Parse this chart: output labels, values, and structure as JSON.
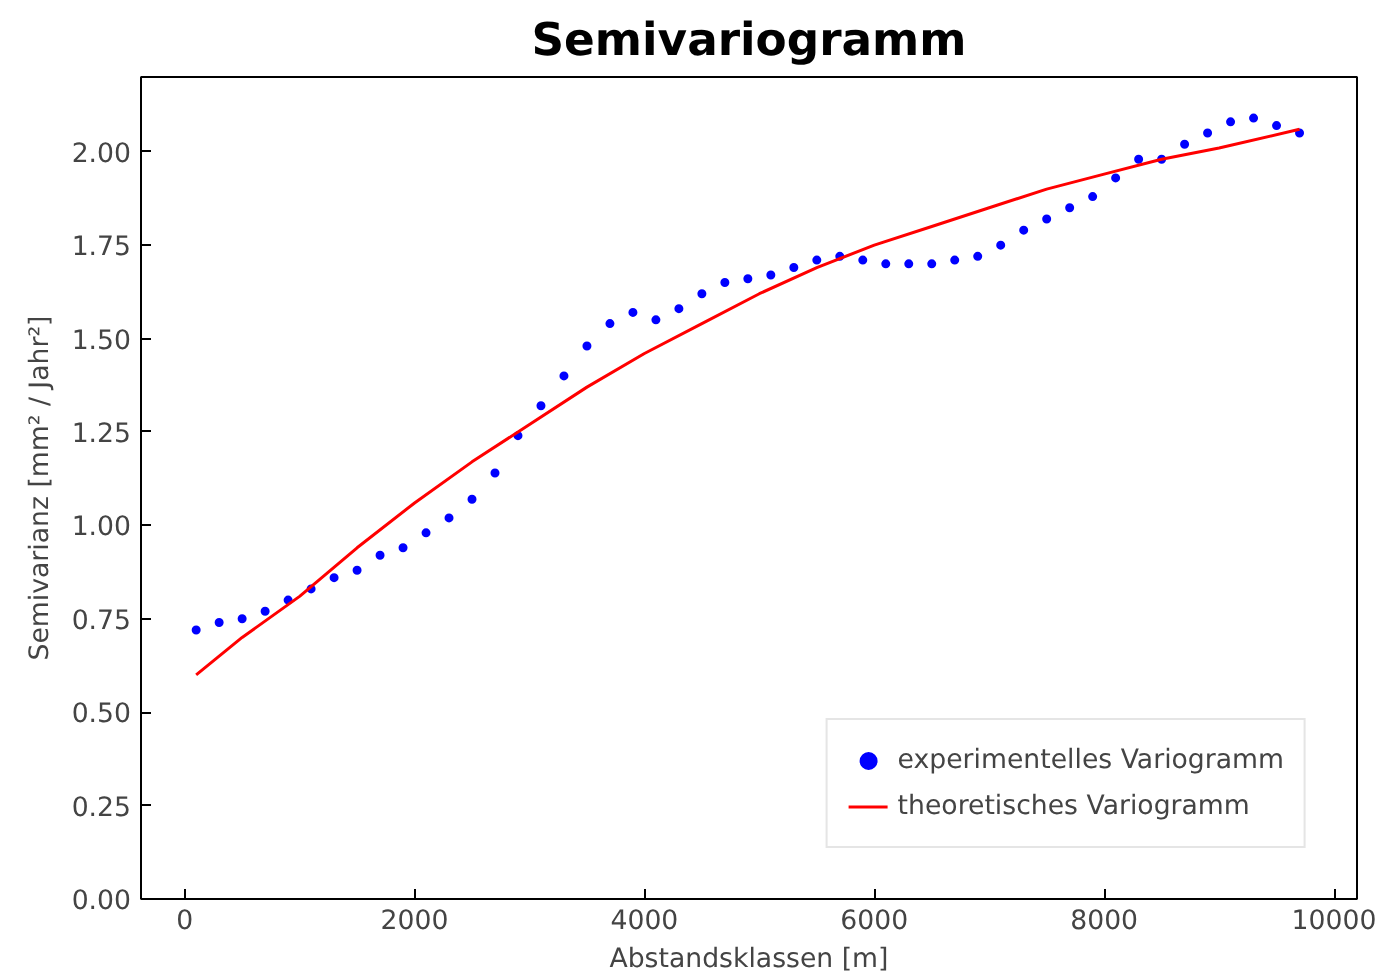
{
  "chart_data": {
    "type": "scatter",
    "title": "Semivariogramm",
    "xlabel": "Abstandsklassen [m]",
    "ylabel": "Semivarianz [mm² / Jahr²]",
    "xlim": [
      -380,
      10200
    ],
    "ylim": [
      0,
      2.2
    ],
    "xticks": [
      0,
      2000,
      4000,
      6000,
      8000,
      10000
    ],
    "yticks": [
      {
        "value": 0,
        "label": "0.00"
      },
      {
        "value": 0.25,
        "label": "0.25"
      },
      {
        "value": 0.5,
        "label": "0.50"
      },
      {
        "value": 0.75,
        "label": "0.75"
      },
      {
        "value": 1,
        "label": "1.00"
      },
      {
        "value": 1.25,
        "label": "1.25"
      },
      {
        "value": 1.5,
        "label": "1.50"
      },
      {
        "value": 1.75,
        "label": "1.75"
      },
      {
        "value": 2,
        "label": "2.00"
      }
    ],
    "grid": false,
    "legend": "bottom right",
    "series": [
      {
        "name": "experimentelles Variogramm",
        "marker": "circle",
        "color": "#0000ff",
        "x": [
          100,
          300,
          500,
          700,
          900,
          1100,
          1300,
          1500,
          1700,
          1900,
          2100,
          2300,
          2500,
          2700,
          2900,
          3100,
          3300,
          3500,
          3700,
          3900,
          4100,
          4300,
          4500,
          4700,
          4900,
          5100,
          5300,
          5500,
          5700,
          5900,
          6100,
          6300,
          6500,
          6700,
          6900,
          7100,
          7300,
          7500,
          7700,
          7900,
          8100,
          8300,
          8500,
          8700,
          8900,
          9100,
          9300,
          9500,
          9700
        ],
        "values": [
          0.72,
          0.74,
          0.75,
          0.77,
          0.8,
          0.83,
          0.86,
          0.88,
          0.92,
          0.94,
          0.98,
          1.02,
          1.07,
          1.14,
          1.24,
          1.32,
          1.4,
          1.48,
          1.54,
          1.57,
          1.55,
          1.58,
          1.62,
          1.65,
          1.66,
          1.67,
          1.69,
          1.71,
          1.72,
          1.71,
          1.7,
          1.7,
          1.7,
          1.71,
          1.72,
          1.75,
          1.79,
          1.82,
          1.85,
          1.88,
          1.93,
          1.98,
          1.98,
          2.02,
          2.05,
          2.08,
          2.09,
          2.07,
          2.05
        ]
      },
      {
        "name": "theoretisches Variogramm",
        "type": "line",
        "line_style": "solid",
        "color": "#ff0000",
        "x": [
          100,
          500,
          1000,
          1500,
          2000,
          2500,
          3000,
          3500,
          4000,
          4500,
          5000,
          5500,
          6000,
          6500,
          7000,
          7500,
          8000,
          8500,
          9000,
          9700
        ],
        "values": [
          0.6,
          0.7,
          0.81,
          0.94,
          1.06,
          1.17,
          1.27,
          1.37,
          1.46,
          1.54,
          1.62,
          1.69,
          1.75,
          1.8,
          1.85,
          1.9,
          1.94,
          1.98,
          2.01,
          2.06
        ]
      }
    ]
  }
}
